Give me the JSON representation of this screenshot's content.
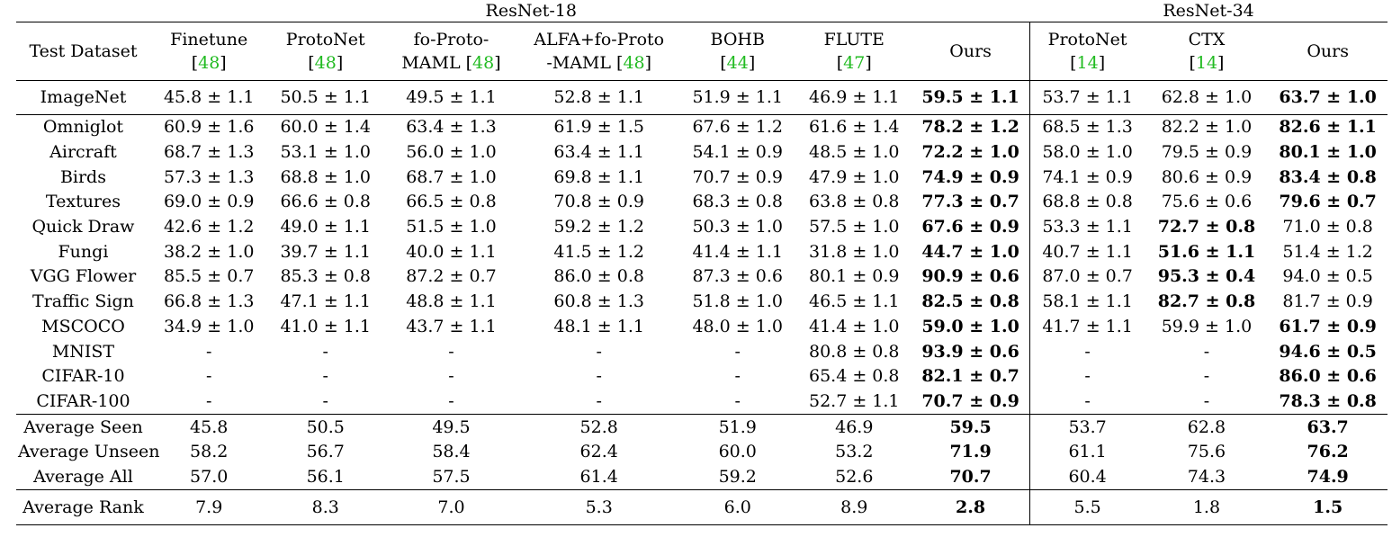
{
  "group_headers": {
    "resnet18": "ResNet-18",
    "resnet34": "ResNet-34"
  },
  "columns": [
    {
      "line1": "Test Dataset",
      "line2": "",
      "cite": ""
    },
    {
      "line1": "Finetune",
      "line2": "[",
      "cite": "48",
      "close": "]"
    },
    {
      "line1": "ProtoNet",
      "line2": "[",
      "cite": "48",
      "close": "]"
    },
    {
      "line1": "fo-Proto-",
      "line2": "MAML [",
      "cite": "48",
      "close": "]"
    },
    {
      "line1": "ALFA+fo-Proto",
      "line2": "-MAML [",
      "cite": "48",
      "close": "]"
    },
    {
      "line1": "BOHB",
      "line2": "[",
      "cite": "44",
      "close": "]"
    },
    {
      "line1": "FLUTE",
      "line2": "[",
      "cite": "47",
      "close": "]"
    },
    {
      "line1": "Ours",
      "line2": "",
      "cite": ""
    },
    {
      "line1": "ProtoNet",
      "line2": "[",
      "cite": "14",
      "close": "]"
    },
    {
      "line1": "CTX",
      "line2": "[",
      "cite": "14",
      "close": "]"
    },
    {
      "line1": "Ours",
      "line2": "",
      "cite": ""
    }
  ],
  "sections": [
    {
      "rows": [
        {
          "name": "ImageNet",
          "cells": [
            "45.8 ± 1.1",
            "50.5 ± 1.1",
            "49.5 ± 1.1",
            "52.8 ± 1.1",
            "51.9 ± 1.1",
            "46.9 ± 1.1",
            "59.5 ± 1.1",
            "53.7 ± 1.1",
            "62.8 ± 1.0",
            "63.7 ± 1.0"
          ],
          "bold": [
            6,
            9
          ]
        }
      ]
    },
    {
      "rows": [
        {
          "name": "Omniglot",
          "cells": [
            "60.9 ± 1.6",
            "60.0 ± 1.4",
            "63.4 ± 1.3",
            "61.9 ± 1.5",
            "67.6 ± 1.2",
            "61.6 ± 1.4",
            "78.2 ± 1.2",
            "68.5 ± 1.3",
            "82.2 ± 1.0",
            "82.6 ± 1.1"
          ],
          "bold": [
            6,
            9
          ]
        },
        {
          "name": "Aircraft",
          "cells": [
            "68.7 ± 1.3",
            "53.1 ± 1.0",
            "56.0 ± 1.0",
            "63.4 ± 1.1",
            "54.1 ± 0.9",
            "48.5 ± 1.0",
            "72.2 ± 1.0",
            "58.0 ± 1.0",
            "79.5 ± 0.9",
            "80.1 ± 1.0"
          ],
          "bold": [
            6,
            9
          ]
        },
        {
          "name": "Birds",
          "cells": [
            "57.3 ± 1.3",
            "68.8 ± 1.0",
            "68.7 ± 1.0",
            "69.8 ± 1.1",
            "70.7 ± 0.9",
            "47.9 ± 1.0",
            "74.9 ± 0.9",
            "74.1 ± 0.9",
            "80.6 ± 0.9",
            "83.4 ± 0.8"
          ],
          "bold": [
            6,
            9
          ]
        },
        {
          "name": "Textures",
          "cells": [
            "69.0 ± 0.9",
            "66.6 ± 0.8",
            "66.5 ± 0.8",
            "70.8 ± 0.9",
            "68.3 ± 0.8",
            "63.8 ± 0.8",
            "77.3 ± 0.7",
            "68.8 ± 0.8",
            "75.6 ± 0.6",
            "79.6 ± 0.7"
          ],
          "bold": [
            6,
            9
          ]
        },
        {
          "name": "Quick Draw",
          "cells": [
            "42.6 ± 1.2",
            "49.0 ± 1.1",
            "51.5 ± 1.0",
            "59.2 ± 1.2",
            "50.3 ± 1.0",
            "57.5 ± 1.0",
            "67.6 ± 0.9",
            "53.3 ± 1.1",
            "72.7 ± 0.8",
            "71.0 ± 0.8"
          ],
          "bold": [
            6,
            8
          ]
        },
        {
          "name": "Fungi",
          "cells": [
            "38.2 ± 1.0",
            "39.7 ± 1.1",
            "40.0 ± 1.1",
            "41.5 ± 1.2",
            "41.4 ± 1.1",
            "31.8 ± 1.0",
            "44.7 ± 1.0",
            "40.7 ± 1.1",
            "51.6 ± 1.1",
            "51.4 ± 1.2"
          ],
          "bold": [
            6,
            8
          ]
        },
        {
          "name": "VGG Flower",
          "cells": [
            "85.5 ± 0.7",
            "85.3 ± 0.8",
            "87.2 ± 0.7",
            "86.0 ± 0.8",
            "87.3 ± 0.6",
            "80.1 ± 0.9",
            "90.9 ± 0.6",
            "87.0 ± 0.7",
            "95.3 ± 0.4",
            "94.0 ± 0.5"
          ],
          "bold": [
            6,
            8
          ]
        },
        {
          "name": "Traffic Sign",
          "cells": [
            "66.8 ± 1.3",
            "47.1 ± 1.1",
            "48.8 ± 1.1",
            "60.8 ± 1.3",
            "51.8 ± 1.0",
            "46.5 ± 1.1",
            "82.5 ± 0.8",
            "58.1 ± 1.1",
            "82.7 ± 0.8",
            "81.7 ± 0.9"
          ],
          "bold": [
            6,
            8
          ]
        },
        {
          "name": "MSCOCO",
          "cells": [
            "34.9 ± 1.0",
            "41.0 ± 1.1",
            "43.7 ± 1.1",
            "48.1 ± 1.1",
            "48.0 ± 1.0",
            "41.4 ± 1.0",
            "59.0 ± 1.0",
            "41.7 ± 1.1",
            "59.9 ± 1.0",
            "61.7 ± 0.9"
          ],
          "bold": [
            6,
            9
          ]
        },
        {
          "name": "MNIST",
          "cells": [
            "-",
            "-",
            "-",
            "-",
            "-",
            "80.8 ± 0.8",
            "93.9 ± 0.6",
            "-",
            "-",
            "94.6 ± 0.5"
          ],
          "bold": [
            6,
            9
          ]
        },
        {
          "name": "CIFAR-10",
          "cells": [
            "-",
            "-",
            "-",
            "-",
            "-",
            "65.4 ± 0.8",
            "82.1 ± 0.7",
            "-",
            "-",
            "86.0 ± 0.6"
          ],
          "bold": [
            6,
            9
          ]
        },
        {
          "name": "CIFAR-100",
          "cells": [
            "-",
            "-",
            "-",
            "-",
            "-",
            "52.7 ± 1.1",
            "70.7 ± 0.9",
            "-",
            "-",
            "78.3 ± 0.8"
          ],
          "bold": [
            6,
            9
          ]
        }
      ]
    },
    {
      "rows": [
        {
          "name": "Average Seen",
          "cells": [
            "45.8",
            "50.5",
            "49.5",
            "52.8",
            "51.9",
            "46.9",
            "59.5",
            "53.7",
            "62.8",
            "63.7"
          ],
          "bold": [
            6,
            9
          ]
        },
        {
          "name": "Average Unseen",
          "cells": [
            "58.2",
            "56.7",
            "58.4",
            "62.4",
            "60.0",
            "53.2",
            "71.9",
            "61.1",
            "75.6",
            "76.2"
          ],
          "bold": [
            6,
            9
          ]
        },
        {
          "name": "Average All",
          "cells": [
            "57.0",
            "56.1",
            "57.5",
            "61.4",
            "59.2",
            "52.6",
            "70.7",
            "60.4",
            "74.3",
            "74.9"
          ],
          "bold": [
            6,
            9
          ]
        }
      ]
    },
    {
      "rows": [
        {
          "name": "Average Rank",
          "cells": [
            "7.9",
            "8.3",
            "7.0",
            "5.3",
            "6.0",
            "8.9",
            "2.8",
            "5.5",
            "1.8",
            "1.5"
          ],
          "bold": [
            6,
            9
          ]
        }
      ]
    }
  ]
}
